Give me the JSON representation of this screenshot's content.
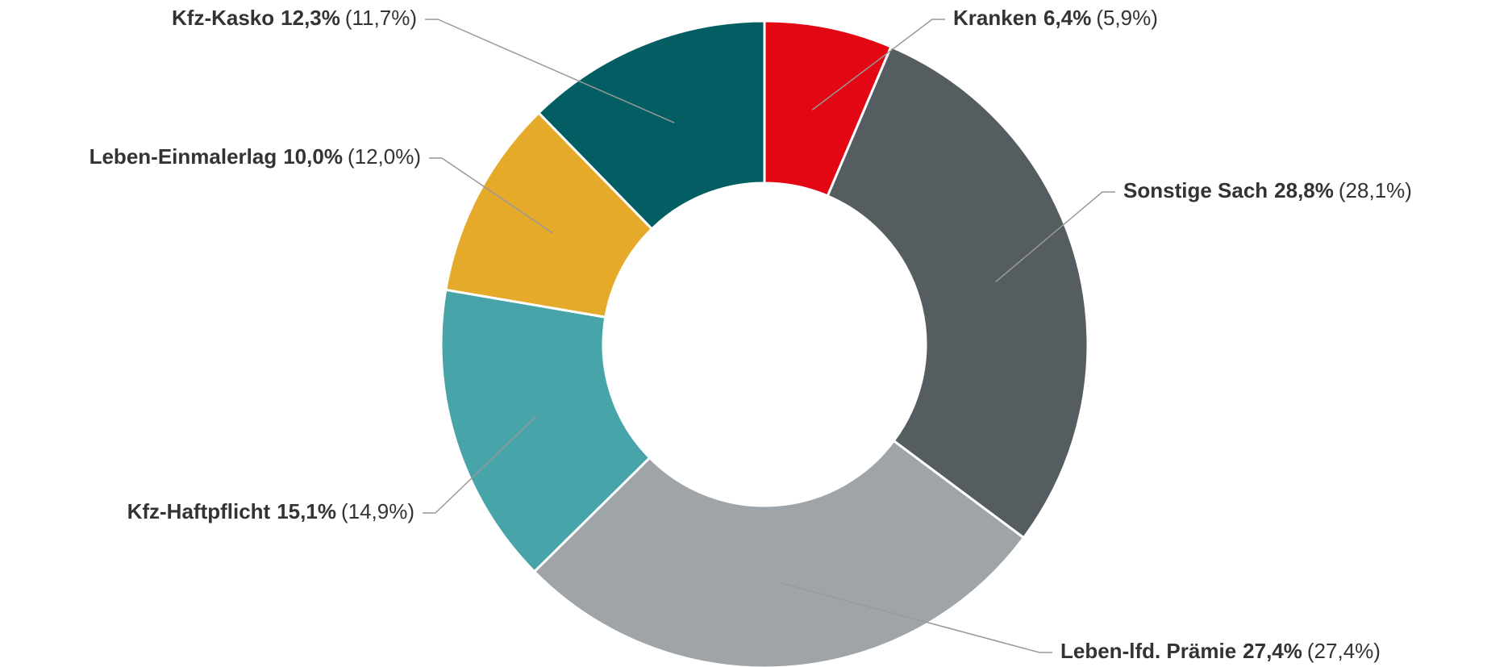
{
  "chart_data": {
    "type": "pie",
    "categories": [
      "Kranken",
      "Sonstige Sach",
      "Leben-lfd. Prämie",
      "Kfz-Haftpflicht",
      "Leben-Einmalerlag",
      "Kfz-Kasko"
    ],
    "values": [
      6.4,
      28.8,
      27.4,
      15.1,
      10.0,
      12.3
    ],
    "value_labels": [
      "6,4%",
      "28,8%",
      "27,4%",
      "15,1%",
      "10,0%",
      "12,3%"
    ],
    "prior_values": [
      5.9,
      28.1,
      27.4,
      14.9,
      12.0,
      11.7
    ],
    "prior_value_labels": [
      "(5,9%)",
      "(28,1%)",
      "(27,4%)",
      "(14,9%)",
      "(12,0%)",
      "(11,7%)"
    ],
    "colors": [
      "#e30613",
      "#565d61",
      "#9ea4a7",
      "#47a5aa",
      "#e6aa2a",
      "#025e62"
    ],
    "donut": true
  }
}
